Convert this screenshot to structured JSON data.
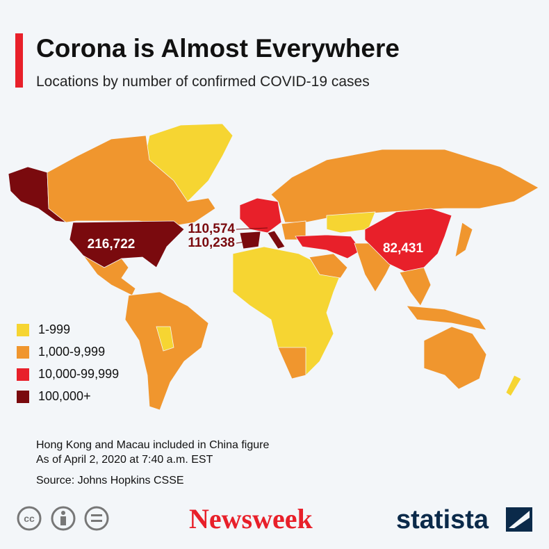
{
  "header": {
    "title": "Corona is Almost Everywhere",
    "subtitle": "Locations by number of confirmed COVID-19 cases"
  },
  "map": {
    "labels": [
      {
        "text": "216,722"
      },
      {
        "text": "110,574"
      },
      {
        "text": "110,238"
      },
      {
        "text": "82,431"
      }
    ]
  },
  "legend": {
    "items": [
      {
        "label": "1-999",
        "color": "#f6d532"
      },
      {
        "label": "1,000-9,999",
        "color": "#f0962e"
      },
      {
        "label": "10,000-99,999",
        "color": "#e8202a"
      },
      {
        "label": "100,000+",
        "color": "#7a0a0e"
      }
    ]
  },
  "footer": {
    "notes": [
      "Hong Kong and Macau included in China figure",
      "As of April 2, 2020 at 7:40 a.m. EST"
    ],
    "source": "Source: Johns Hopkins CSSE"
  },
  "logos": {
    "cc": "cc",
    "newsweek": "Newsweek",
    "statista": "statista"
  }
}
